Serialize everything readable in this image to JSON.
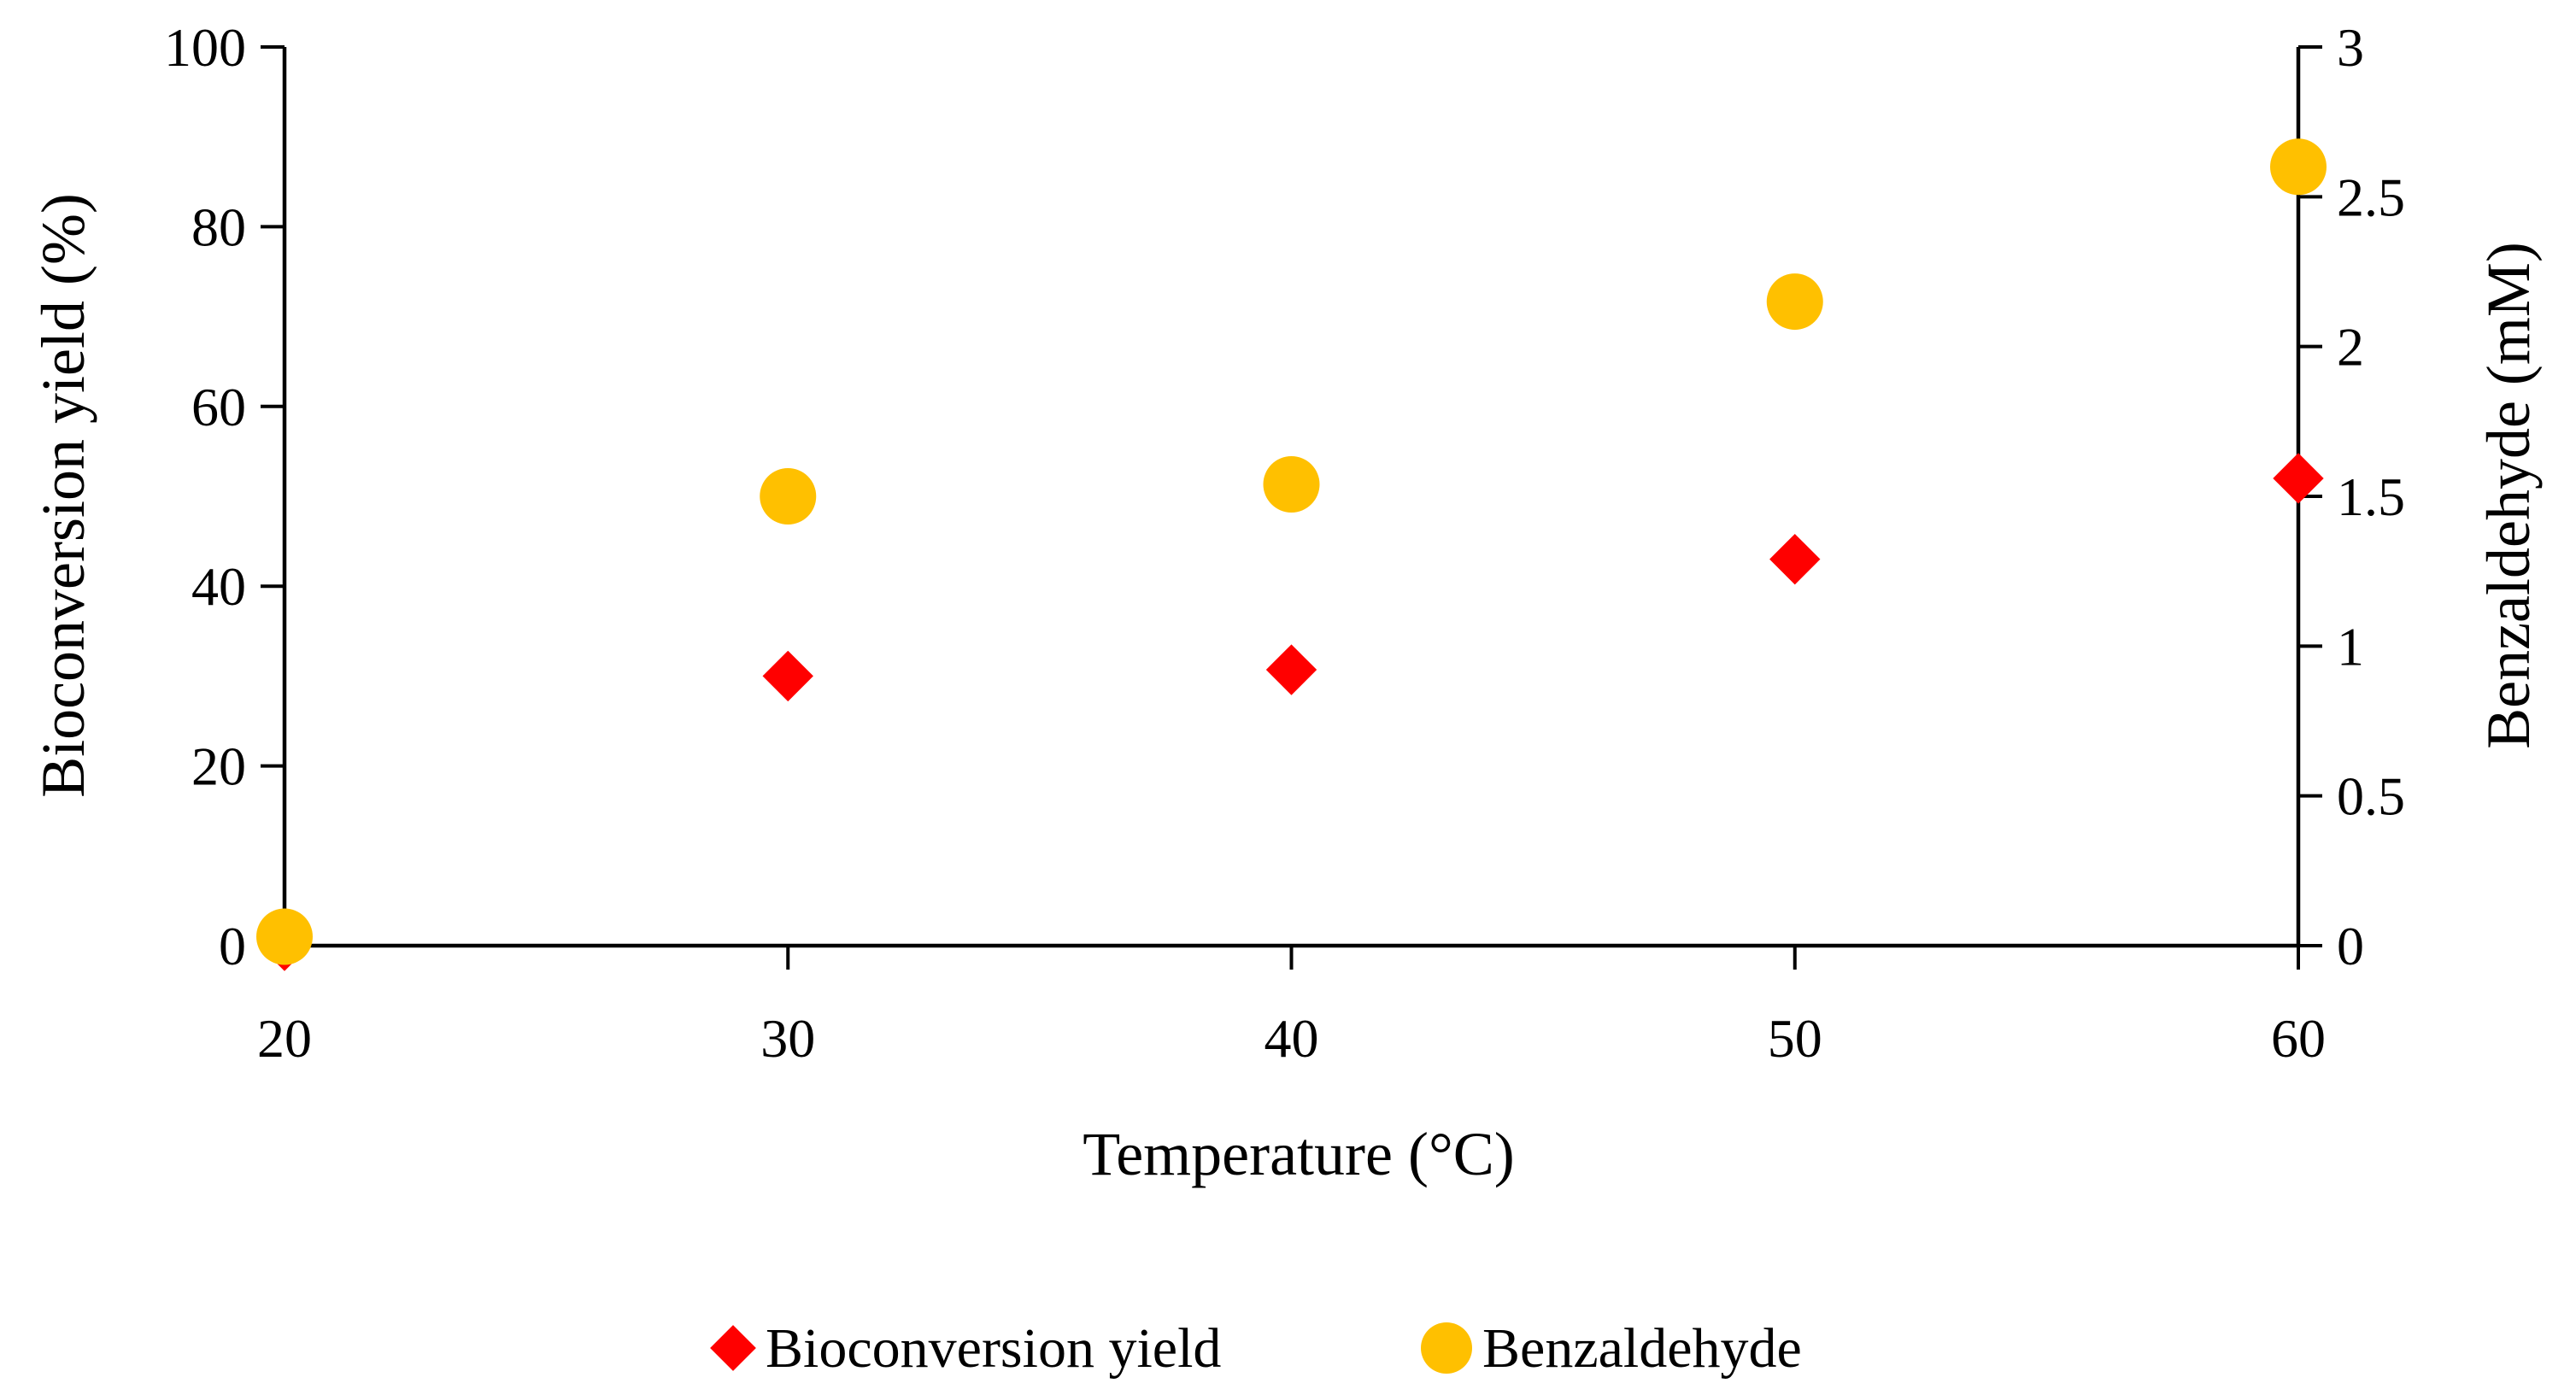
{
  "chart_data": {
    "type": "scatter",
    "title": "",
    "xlabel": "Temperature (°C)",
    "ylabel_left": "Bioconversion yield (%)",
    "ylabel_right": "Benzaldehyde (mM)",
    "x_ticks": [
      "20",
      "30",
      "40",
      "50",
      "60"
    ],
    "y_left_ticks": [
      "0",
      "20",
      "40",
      "60",
      "80",
      "100"
    ],
    "y_right_ticks": [
      "0",
      "0.5",
      "1",
      "1.5",
      "2",
      "2.5",
      "3"
    ],
    "xlim": [
      20,
      60
    ],
    "ylim_left": [
      0,
      100
    ],
    "ylim_right": [
      0,
      3
    ],
    "grid": false,
    "legend_position": "bottom",
    "series": [
      {
        "name": "Bioconversion yield",
        "axis": "left",
        "marker": "diamond",
        "color": "#ff0000",
        "x": [
          20,
          30,
          40,
          50,
          60
        ],
        "y": [
          0,
          30,
          30.7,
          43,
          52
        ]
      },
      {
        "name": "Benzaldehyde",
        "axis": "right",
        "marker": "circle",
        "color": "#ffc000",
        "x": [
          20,
          30,
          40,
          50,
          60
        ],
        "y": [
          0.03,
          1.5,
          1.54,
          2.15,
          2.6
        ]
      }
    ]
  }
}
